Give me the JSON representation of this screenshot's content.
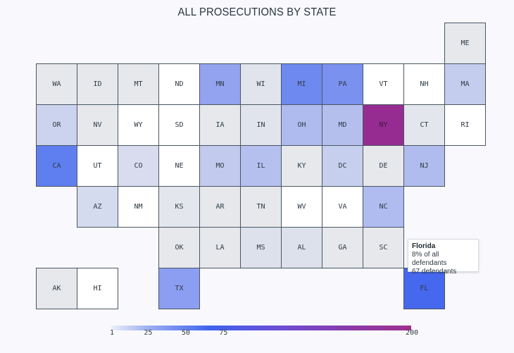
{
  "chart_data": {
    "type": "heatmap",
    "title": "ALL PROSECUTIONS BY STATE",
    "states": [
      {
        "abbr": "ME",
        "color": "#e6e8ec"
      },
      {
        "abbr": "WA",
        "color": "#e6e8ec"
      },
      {
        "abbr": "ID",
        "color": "#e6e8ec"
      },
      {
        "abbr": "MT",
        "color": "#e6e8ec"
      },
      {
        "abbr": "ND",
        "color": "#ffffff"
      },
      {
        "abbr": "MN",
        "color": "#93a3f0"
      },
      {
        "abbr": "WI",
        "color": "#e1e4ec"
      },
      {
        "abbr": "MI",
        "color": "#6e89f0"
      },
      {
        "abbr": "PA",
        "color": "#7a91f0"
      },
      {
        "abbr": "VT",
        "color": "#ffffff"
      },
      {
        "abbr": "NH",
        "color": "#ffffff"
      },
      {
        "abbr": "MA",
        "color": "#c5cdee"
      },
      {
        "abbr": "OR",
        "color": "#ccd3ee"
      },
      {
        "abbr": "NV",
        "color": "#e6e8ec"
      },
      {
        "abbr": "WY",
        "color": "#ffffff"
      },
      {
        "abbr": "SD",
        "color": "#ffffff"
      },
      {
        "abbr": "IA",
        "color": "#e6e8ec"
      },
      {
        "abbr": "IN",
        "color": "#e1e4ec"
      },
      {
        "abbr": "OH",
        "color": "#afbbef"
      },
      {
        "abbr": "MD",
        "color": "#b5bfee"
      },
      {
        "abbr": "NY",
        "color": "#962c92"
      },
      {
        "abbr": "CT",
        "color": "#e3e6ec"
      },
      {
        "abbr": "RI",
        "color": "#ffffff"
      },
      {
        "abbr": "CA",
        "color": "#5f7ff0"
      },
      {
        "abbr": "UT",
        "color": "#ffffff"
      },
      {
        "abbr": "CO",
        "color": "#d8dcee"
      },
      {
        "abbr": "NE",
        "color": "#ffffff"
      },
      {
        "abbr": "MO",
        "color": "#c2caee"
      },
      {
        "abbr": "IL",
        "color": "#b6c0ef"
      },
      {
        "abbr": "KY",
        "color": "#e6e8ec"
      },
      {
        "abbr": "DC",
        "color": "#c7cfee"
      },
      {
        "abbr": "DE",
        "color": "#e6e8ec"
      },
      {
        "abbr": "NJ",
        "color": "#b0bbee"
      },
      {
        "abbr": "AZ",
        "color": "#d5dbee"
      },
      {
        "abbr": "NM",
        "color": "#ffffff"
      },
      {
        "abbr": "KS",
        "color": "#e3e6ec"
      },
      {
        "abbr": "AR",
        "color": "#e6e8ec"
      },
      {
        "abbr": "TN",
        "color": "#e6e8ec"
      },
      {
        "abbr": "WV",
        "color": "#ffffff"
      },
      {
        "abbr": "VA",
        "color": "#ffffff"
      },
      {
        "abbr": "NC",
        "color": "#b0bbef"
      },
      {
        "abbr": "OK",
        "color": "#e6e8ec"
      },
      {
        "abbr": "LA",
        "color": "#e6e8ec"
      },
      {
        "abbr": "MS",
        "color": "#dde1ec"
      },
      {
        "abbr": "AL",
        "color": "#dde1ec"
      },
      {
        "abbr": "GA",
        "color": "#e6e8ec"
      },
      {
        "abbr": "SC",
        "color": "#e6e8ec"
      },
      {
        "abbr": "AK",
        "color": "#e6e8ec"
      },
      {
        "abbr": "HI",
        "color": "#ffffff"
      },
      {
        "abbr": "TX",
        "color": "#8c9ef1"
      },
      {
        "abbr": "FL",
        "color": "#4568ee"
      }
    ],
    "legend": {
      "ticks": [
        "1",
        "25",
        "50",
        "75",
        "200"
      ],
      "tick_values": [
        1,
        25,
        50,
        75,
        200
      ],
      "range": [
        1,
        200
      ],
      "colors": [
        "#eceef6",
        "#3f63ee",
        "#a0308e"
      ]
    },
    "tooltip": {
      "state": "Florida",
      "percent_line": "8% of all defendants",
      "count_line": "67 defendants",
      "percent": 8,
      "count": 67
    }
  }
}
